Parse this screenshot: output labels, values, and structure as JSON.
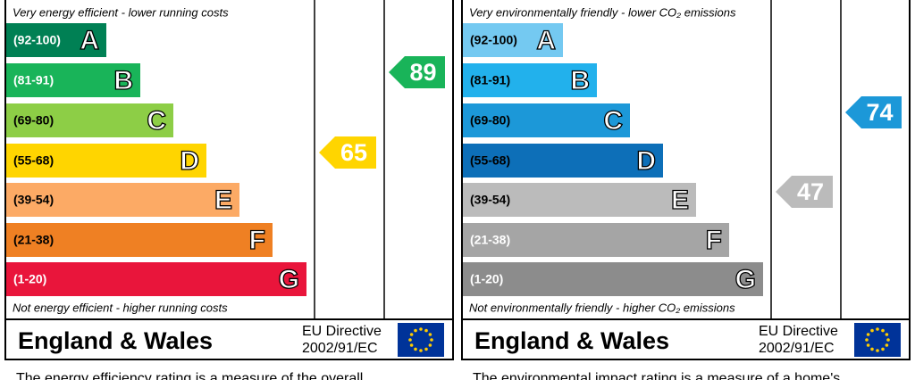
{
  "panels": [
    {
      "top_note": "Very energy efficient - lower running costs",
      "bands": [
        {
          "range": "(92-100)",
          "letter": "A",
          "min": 92,
          "max": 100,
          "color": "#008054",
          "text_color": "#ffffff"
        },
        {
          "range": "(81-91)",
          "letter": "B",
          "min": 81,
          "max": 91,
          "color": "#19b459",
          "text_color": "#ffffff"
        },
        {
          "range": "(69-80)",
          "letter": "C",
          "min": 69,
          "max": 80,
          "color": "#8dce46",
          "text_color": "#000000"
        },
        {
          "range": "(55-68)",
          "letter": "D",
          "min": 55,
          "max": 68,
          "color": "#ffd500",
          "text_color": "#000000"
        },
        {
          "range": "(39-54)",
          "letter": "E",
          "min": 39,
          "max": 54,
          "color": "#fcaa65",
          "text_color": "#000000"
        },
        {
          "range": "(21-38)",
          "letter": "F",
          "min": 21,
          "max": 38,
          "color": "#ef8023",
          "text_color": "#000000"
        },
        {
          "range": "(1-20)",
          "letter": "G",
          "min": 1,
          "max": 20,
          "color": "#e9153b",
          "text_color": "#ffffff"
        }
      ],
      "bottom_note": "Not energy efficient - higher running costs",
      "current": 65,
      "potential": 89,
      "footer": "England & Wales",
      "directive": [
        "EU Directive",
        "2002/91/EC"
      ],
      "description": "The energy efficiency rating is a measure of the overall"
    },
    {
      "top_note": "Very environmentally friendly - lower CO₂ emissions",
      "bands": [
        {
          "range": "(92-100)",
          "letter": "A",
          "min": 92,
          "max": 100,
          "color": "#74c9f1",
          "text_color": "#000000"
        },
        {
          "range": "(81-91)",
          "letter": "B",
          "min": 81,
          "max": 91,
          "color": "#22b1ec",
          "text_color": "#000000"
        },
        {
          "range": "(69-80)",
          "letter": "C",
          "min": 69,
          "max": 80,
          "color": "#1c98d8",
          "text_color": "#000000"
        },
        {
          "range": "(55-68)",
          "letter": "D",
          "min": 55,
          "max": 68,
          "color": "#0d6fb8",
          "text_color": "#000000"
        },
        {
          "range": "(39-54)",
          "letter": "E",
          "min": 39,
          "max": 54,
          "color": "#bbbbbb",
          "text_color": "#000000"
        },
        {
          "range": "(21-38)",
          "letter": "F",
          "min": 21,
          "max": 38,
          "color": "#a5a5a5",
          "text_color": "#ffffff"
        },
        {
          "range": "(1-20)",
          "letter": "G",
          "min": 1,
          "max": 20,
          "color": "#8c8c8c",
          "text_color": "#ffffff"
        }
      ],
      "bottom_note": "Not environmentally friendly - higher CO₂ emissions",
      "current": 47,
      "potential": 74,
      "footer": "England & Wales",
      "directive": [
        "EU Directive",
        "2002/91/EC"
      ],
      "description": "The environmental impact rating is a measure of a home's"
    }
  ]
}
